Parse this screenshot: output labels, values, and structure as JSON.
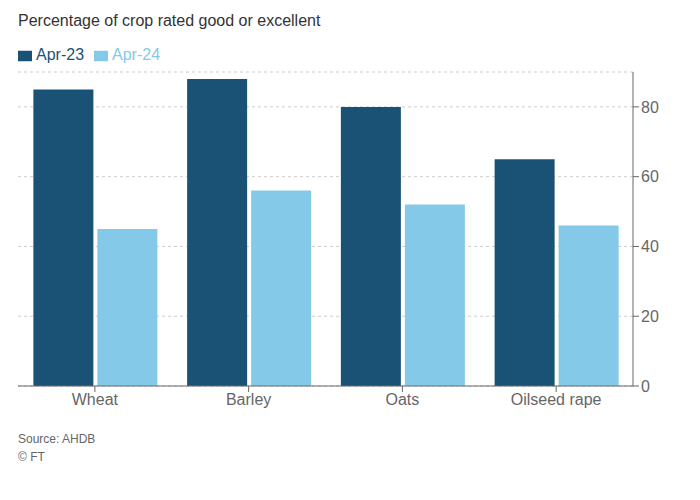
{
  "chart_data": {
    "type": "bar",
    "title": "Percentage of crop rated good or excellent",
    "categories": [
      "Wheat",
      "Barley",
      "Oats",
      "Oilseed rape"
    ],
    "series": [
      {
        "name": "Apr-23",
        "color": "#1a5276",
        "values": [
          85,
          88,
          80,
          65
        ]
      },
      {
        "name": "Apr-24",
        "color": "#85c9e8",
        "values": [
          45,
          56,
          52,
          46
        ]
      }
    ],
    "ylim": [
      0,
      90
    ],
    "yticks": [
      0,
      20,
      40,
      60,
      80
    ],
    "grid": true,
    "legend": "upper left",
    "annotation": "Source: AHDB\n© FT"
  }
}
